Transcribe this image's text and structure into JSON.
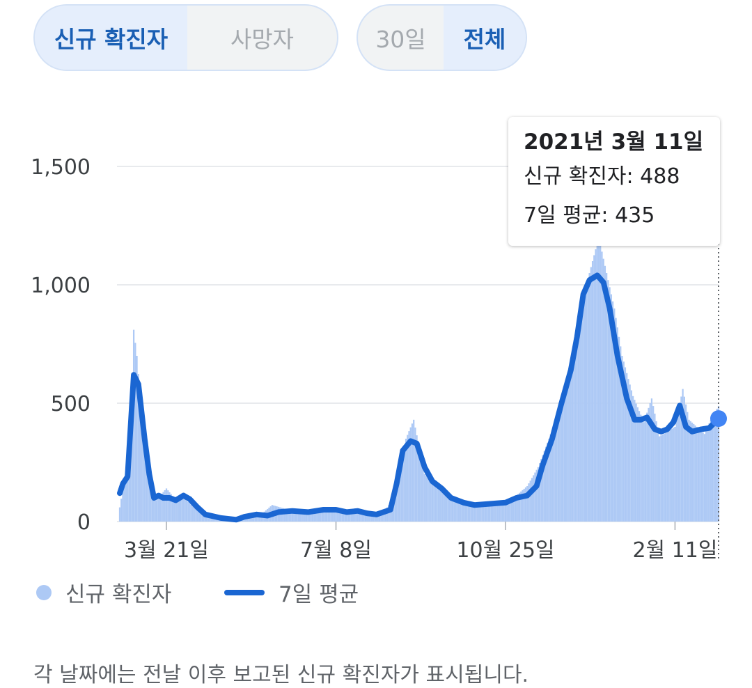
{
  "toggles": {
    "metric": {
      "options": [
        "신규 확진자",
        "사망자"
      ],
      "selected": 0
    },
    "range": {
      "options": [
        "30일",
        "전체"
      ],
      "selected": 1
    }
  },
  "tooltip": {
    "date": "2021년 3월 11일",
    "cases_line": "신규 확진자: 488",
    "avg_line": "7일 평균: 435"
  },
  "legend": {
    "bars": "신규 확진자",
    "line": "7일 평균"
  },
  "footnote": "각 날짜에는 전날 이후 보고된 신규 확진자가 표시됩니다.",
  "colors": {
    "bar": "#adc9f5",
    "line": "#1a66d2",
    "point": "#4285f4",
    "grid": "#e8eaed"
  },
  "chart_data": {
    "type": "bar",
    "y_ticks": [
      0,
      500,
      1000,
      1500
    ],
    "y_tick_labels": [
      "0",
      "500",
      "1,000",
      "1,500"
    ],
    "ylim": [
      0,
      1500
    ],
    "x_range": [
      "2020-02-20",
      "2021-03-11"
    ],
    "x_ticks": [
      {
        "date": "2020-03-21",
        "label": "3월 21일"
      },
      {
        "date": "2020-07-08",
        "label": "7월 8일"
      },
      {
        "date": "2020-10-25",
        "label": "10월 25일"
      },
      {
        "date": "2021-02-11",
        "label": "2월 11일"
      }
    ],
    "series": [
      {
        "name": "신규 확진자",
        "kind": "bar",
        "points": [
          [
            "2020-02-20",
            60
          ],
          [
            "2020-02-23",
            170
          ],
          [
            "2020-02-26",
            260
          ],
          [
            "2020-02-29",
            810
          ],
          [
            "2020-03-02",
            700
          ],
          [
            "2020-03-05",
            470
          ],
          [
            "2020-03-08",
            260
          ],
          [
            "2020-03-11",
            120
          ],
          [
            "2020-03-14",
            90
          ],
          [
            "2020-03-17",
            110
          ],
          [
            "2020-03-21",
            140
          ],
          [
            "2020-03-26",
            100
          ],
          [
            "2020-04-01",
            100
          ],
          [
            "2020-04-08",
            60
          ],
          [
            "2020-04-15",
            30
          ],
          [
            "2020-04-25",
            15
          ],
          [
            "2020-05-05",
            10
          ],
          [
            "2020-05-12",
            30
          ],
          [
            "2020-05-20",
            25
          ],
          [
            "2020-05-28",
            70
          ],
          [
            "2020-06-10",
            45
          ],
          [
            "2020-06-25",
            45
          ],
          [
            "2020-07-08",
            55
          ],
          [
            "2020-07-20",
            40
          ],
          [
            "2020-07-28",
            45
          ],
          [
            "2020-08-01",
            30
          ],
          [
            "2020-08-08",
            40
          ],
          [
            "2020-08-14",
            100
          ],
          [
            "2020-08-17",
            200
          ],
          [
            "2020-08-22",
            350
          ],
          [
            "2020-08-27",
            430
          ],
          [
            "2020-09-03",
            200
          ],
          [
            "2020-09-10",
            150
          ],
          [
            "2020-09-20",
            90
          ],
          [
            "2020-09-30",
            70
          ],
          [
            "2020-10-10",
            75
          ],
          [
            "2020-10-25",
            90
          ],
          [
            "2020-11-01",
            110
          ],
          [
            "2020-11-08",
            150
          ],
          [
            "2020-11-15",
            230
          ],
          [
            "2020-11-22",
            350
          ],
          [
            "2020-11-29",
            480
          ],
          [
            "2020-12-06",
            620
          ],
          [
            "2020-12-12",
            880
          ],
          [
            "2020-12-18",
            1050
          ],
          [
            "2020-12-24",
            1200
          ],
          [
            "2020-12-29",
            1050
          ],
          [
            "2021-01-03",
            900
          ],
          [
            "2021-01-08",
            700
          ],
          [
            "2021-01-15",
            530
          ],
          [
            "2021-01-22",
            420
          ],
          [
            "2021-01-27",
            520
          ],
          [
            "2021-02-01",
            360
          ],
          [
            "2021-02-06",
            380
          ],
          [
            "2021-02-11",
            400
          ],
          [
            "2021-02-16",
            560
          ],
          [
            "2021-02-20",
            430
          ],
          [
            "2021-02-25",
            400
          ],
          [
            "2021-03-02",
            370
          ],
          [
            "2021-03-06",
            430
          ],
          [
            "2021-03-11",
            488
          ]
        ]
      },
      {
        "name": "7일 평균",
        "kind": "line",
        "points": [
          [
            "2020-02-20",
            120
          ],
          [
            "2020-02-22",
            160
          ],
          [
            "2020-02-25",
            190
          ],
          [
            "2020-02-29",
            620
          ],
          [
            "2020-03-03",
            580
          ],
          [
            "2020-03-07",
            350
          ],
          [
            "2020-03-10",
            200
          ],
          [
            "2020-03-13",
            100
          ],
          [
            "2020-03-16",
            110
          ],
          [
            "2020-03-19",
            100
          ],
          [
            "2020-03-23",
            100
          ],
          [
            "2020-03-27",
            90
          ],
          [
            "2020-04-01",
            110
          ],
          [
            "2020-04-05",
            95
          ],
          [
            "2020-04-10",
            60
          ],
          [
            "2020-04-15",
            30
          ],
          [
            "2020-04-25",
            15
          ],
          [
            "2020-05-05",
            8
          ],
          [
            "2020-05-10",
            20
          ],
          [
            "2020-05-18",
            30
          ],
          [
            "2020-05-25",
            25
          ],
          [
            "2020-06-01",
            40
          ],
          [
            "2020-06-10",
            45
          ],
          [
            "2020-06-20",
            40
          ],
          [
            "2020-06-30",
            50
          ],
          [
            "2020-07-08",
            50
          ],
          [
            "2020-07-15",
            40
          ],
          [
            "2020-07-22",
            45
          ],
          [
            "2020-07-28",
            35
          ],
          [
            "2020-08-03",
            30
          ],
          [
            "2020-08-12",
            50
          ],
          [
            "2020-08-16",
            160
          ],
          [
            "2020-08-20",
            300
          ],
          [
            "2020-08-25",
            340
          ],
          [
            "2020-08-29",
            330
          ],
          [
            "2020-09-03",
            230
          ],
          [
            "2020-09-08",
            170
          ],
          [
            "2020-09-14",
            140
          ],
          [
            "2020-09-20",
            100
          ],
          [
            "2020-09-28",
            80
          ],
          [
            "2020-10-05",
            70
          ],
          [
            "2020-10-15",
            75
          ],
          [
            "2020-10-25",
            80
          ],
          [
            "2020-11-01",
            100
          ],
          [
            "2020-11-08",
            110
          ],
          [
            "2020-11-14",
            150
          ],
          [
            "2020-11-18",
            240
          ],
          [
            "2020-11-24",
            350
          ],
          [
            "2020-11-30",
            500
          ],
          [
            "2020-12-06",
            640
          ],
          [
            "2020-12-10",
            780
          ],
          [
            "2020-12-14",
            960
          ],
          [
            "2020-12-18",
            1020
          ],
          [
            "2020-12-23",
            1040
          ],
          [
            "2020-12-27",
            1010
          ],
          [
            "2020-12-31",
            900
          ],
          [
            "2021-01-05",
            700
          ],
          [
            "2021-01-11",
            520
          ],
          [
            "2021-01-16",
            430
          ],
          [
            "2021-01-20",
            430
          ],
          [
            "2021-01-24",
            440
          ],
          [
            "2021-01-29",
            390
          ],
          [
            "2021-02-02",
            380
          ],
          [
            "2021-02-06",
            390
          ],
          [
            "2021-02-10",
            420
          ],
          [
            "2021-02-14",
            490
          ],
          [
            "2021-02-18",
            400
          ],
          [
            "2021-02-22",
            380
          ],
          [
            "2021-02-28",
            390
          ],
          [
            "2021-03-05",
            395
          ],
          [
            "2021-03-11",
            435
          ]
        ]
      }
    ]
  }
}
